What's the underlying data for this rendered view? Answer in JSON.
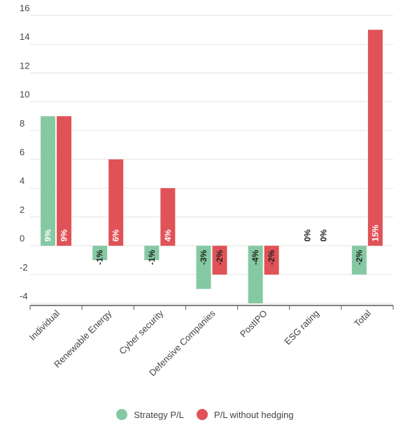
{
  "chart_data": {
    "type": "bar",
    "categories": [
      "Individual",
      "Renewable Energy",
      "Cyber security",
      "Defensive Companies",
      "PostIPO",
      "ESG rating",
      "Total"
    ],
    "series": [
      {
        "name": "Strategy P/L",
        "color": "#85c9a3",
        "values": [
          9,
          -1,
          -1,
          -3,
          -4,
          0,
          -2
        ],
        "labels": [
          "9%",
          "-1%",
          "-1%",
          "-3%",
          "-4%",
          "0%",
          "-2%"
        ]
      },
      {
        "name": "P/L without hedging",
        "color": "#e05257",
        "values": [
          9,
          6,
          4,
          -2,
          -2,
          0,
          15
        ],
        "labels": [
          "9%",
          "6%",
          "4%",
          "-2%",
          "-2%",
          "0%",
          "15%"
        ]
      }
    ],
    "ylim": [
      -4,
      16
    ],
    "yticks": [
      -4,
      -2,
      0,
      2,
      4,
      6,
      8,
      10,
      12,
      14,
      16
    ],
    "grid": true,
    "legend_position": "bottom",
    "xlabel": "",
    "ylabel": "",
    "title": ""
  }
}
